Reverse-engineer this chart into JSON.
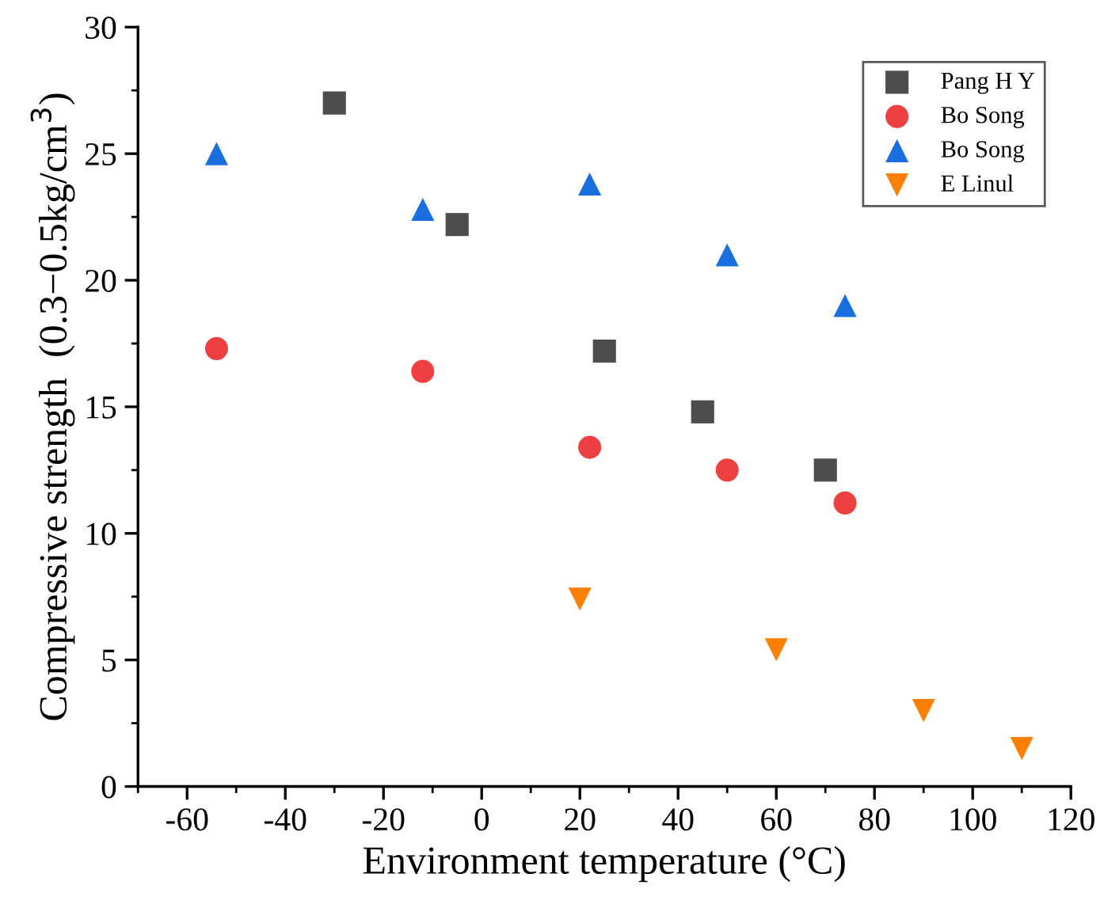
{
  "chart_data": {
    "type": "scatter",
    "xlabel": "Environment temperature (°C)",
    "ylabel": "Compressive strength  (0.3−0.5kg/cm$^{3}$)",
    "xlim": [
      -70,
      120
    ],
    "xticks": [
      -60,
      -40,
      -20,
      0,
      20,
      40,
      60,
      80,
      100,
      120
    ],
    "ylim": [
      0,
      30
    ],
    "yticks": [
      0,
      5,
      10,
      15,
      20,
      25,
      30
    ],
    "grid": false,
    "legend": "top right",
    "series": [
      {
        "name": "Pang H Y",
        "color": "#4d4d4d",
        "marker": "square",
        "x": [
          -30,
          -5,
          25,
          45,
          70
        ],
        "values": [
          27,
          22.2,
          17.2,
          14.8,
          12.5
        ]
      },
      {
        "name": "Bo Song",
        "color": "#ee4040",
        "marker": "circle",
        "x": [
          -54,
          -12,
          22,
          50,
          74
        ],
        "values": [
          17.3,
          16.4,
          13.4,
          12.5,
          11.2
        ]
      },
      {
        "name": "Bo Song",
        "color": "#1a6fe0",
        "marker": "triangle",
        "x": [
          -54,
          -12,
          22,
          50,
          74
        ],
        "values": [
          25,
          22.8,
          23.8,
          21,
          19
        ]
      },
      {
        "name": "E Linul",
        "color": "#ff8000",
        "marker": "triangle_down",
        "x": [
          20,
          60,
          90,
          110
        ],
        "values": [
          7.4,
          5.4,
          3.0,
          1.5
        ]
      }
    ]
  }
}
